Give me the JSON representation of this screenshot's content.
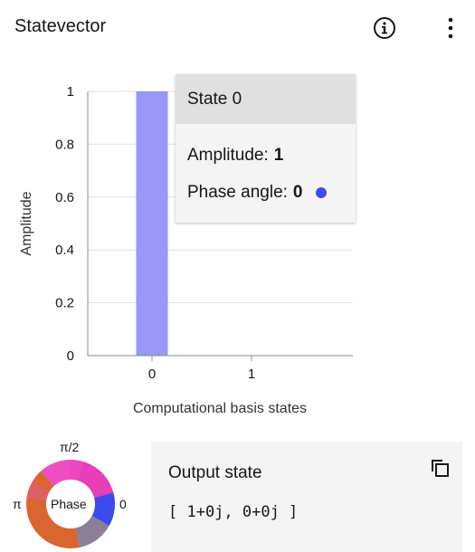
{
  "header": {
    "title": "Statevector",
    "info_icon": "info-circle-icon",
    "menu_icon": "overflow-menu-vertical-icon"
  },
  "chart_data": {
    "type": "bar",
    "categories": [
      "0",
      "1"
    ],
    "values": [
      1,
      0
    ],
    "xlabel": "Computational basis states",
    "ylabel": "Amplitude",
    "ylim": [
      0,
      1
    ],
    "yticks": [
      "0",
      "0.2",
      "0.4",
      "0.6",
      "0.8",
      "1"
    ],
    "grid": true,
    "bar_color": "#9a97f7"
  },
  "tooltip": {
    "title": "State 0",
    "amplitude_label": "Amplitude:",
    "amplitude_value": "1",
    "phase_label": "Phase angle:",
    "phase_value": "0",
    "phase_color": "#4a46f5"
  },
  "phase_legend": {
    "center_label": "Phase",
    "top_label": "π/2",
    "left_label": "π",
    "right_label": "0"
  },
  "output": {
    "title": "Output state",
    "value": "[ 1+0j, 0+0j ]",
    "copy_icon": "copy-icon"
  }
}
